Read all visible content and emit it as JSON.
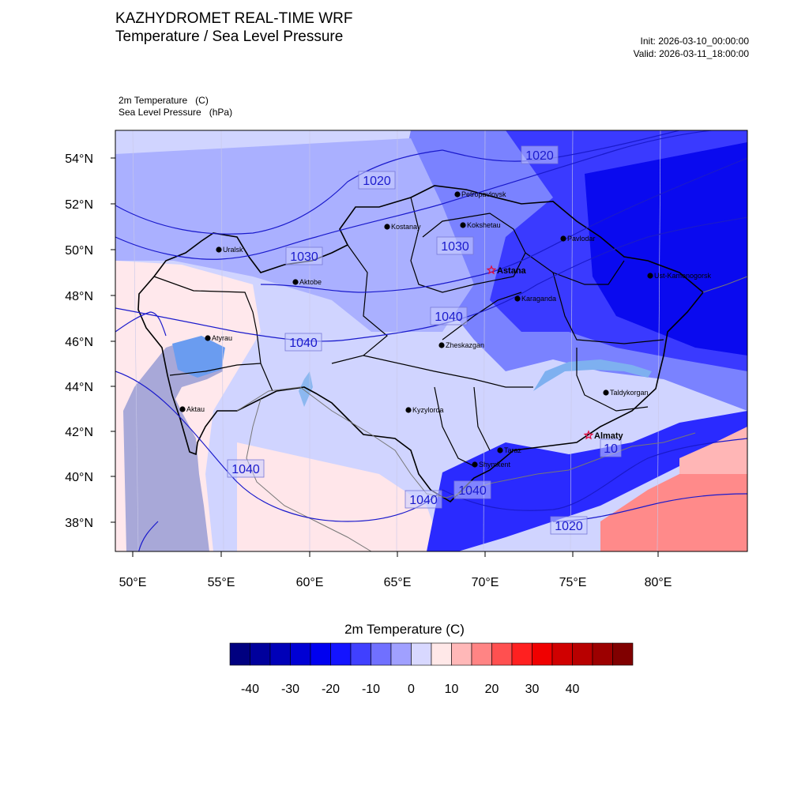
{
  "header": {
    "title": "KAZHYDROMET REAL-TIME WRF",
    "subtitle": "Temperature / Sea Level Pressure",
    "init": "Init: 2026-03-10_00:00:00",
    "valid": "Valid: 2026-03-11_18:00:00"
  },
  "variables": {
    "temp_name": "2m Temperature",
    "temp_unit": "(C)",
    "slp_name": "Sea Level Pressure",
    "slp_unit": "(hPa)"
  },
  "axes": {
    "lat_labels": [
      "54°N",
      "52°N",
      "50°N",
      "48°N",
      "46°N",
      "44°N",
      "42°N",
      "40°N",
      "38°N"
    ],
    "lon_labels": [
      "50°E",
      "55°E",
      "60°E",
      "65°E",
      "70°E",
      "75°E",
      "80°E"
    ]
  },
  "cities": [
    {
      "name": "Petropavlovsk",
      "capital": false
    },
    {
      "name": "Kostanay",
      "capital": false
    },
    {
      "name": "Kokshetau",
      "capital": false
    },
    {
      "name": "Uralsk",
      "capital": false
    },
    {
      "name": "Aktobe",
      "capital": false
    },
    {
      "name": "Pavlodar",
      "capital": false
    },
    {
      "name": "Astana",
      "capital": true
    },
    {
      "name": "Ust-Kamenogorsk",
      "capital": false
    },
    {
      "name": "Karaganda",
      "capital": false
    },
    {
      "name": "Atyrau",
      "capital": false
    },
    {
      "name": "Zheskazgan",
      "capital": false
    },
    {
      "name": "Taldykorgan",
      "capital": false
    },
    {
      "name": "Aktau",
      "capital": false
    },
    {
      "name": "Kyzylorda",
      "capital": false
    },
    {
      "name": "Almaty",
      "capital": true
    },
    {
      "name": "Taraz",
      "capital": false
    },
    {
      "name": "Shymkent",
      "capital": false
    }
  ],
  "isobar_labels": [
    "1020",
    "1020",
    "1030",
    "1030",
    "1040",
    "1040",
    "1040",
    "1040",
    "1040",
    "1020",
    "10"
  ],
  "colorbar": {
    "title": "2m Temperature  (C)",
    "ticks": [
      "-40",
      "-30",
      "-20",
      "-10",
      "0",
      "10",
      "20",
      "30",
      "40"
    ],
    "colors": [
      "#000080",
      "#00009c",
      "#0000b8",
      "#0000d4",
      "#0000f0",
      "#1414ff",
      "#4040ff",
      "#7070ff",
      "#a0a0ff",
      "#d8d8ff",
      "#ffe8e8",
      "#ffb8b8",
      "#ff8484",
      "#ff5050",
      "#ff2020",
      "#f00000",
      "#d00000",
      "#b80000",
      "#9c0000",
      "#800000"
    ]
  },
  "palette": {
    "water": "#a8c8f0",
    "caspian_shallow": "#a8a8d8",
    "isobar": "#1a1acc"
  }
}
